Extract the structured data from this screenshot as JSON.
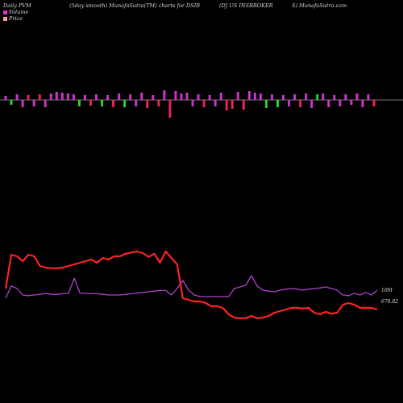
{
  "header": {
    "left": "Daily PVM",
    "center_left": "(5day smooth) MunafaSutra(TM) charts for DSIB",
    "center_right": "(DJ US INSBROKER",
    "right": "S) MunafaSutra.com"
  },
  "legend": {
    "volume_label": "Volume",
    "price_label": "Price",
    "volume_color": "#d633d6",
    "price_color": "#ff3333"
  },
  "colors": {
    "background": "#000000",
    "bar_up": "#cc33cc",
    "bar_down": "#ee2255",
    "bar_green": "#33cc33",
    "baseline": "#9a9a9a",
    "price_line": "#ff2222",
    "volume_line": "#b040d0"
  },
  "chart_data": [
    {
      "type": "bar",
      "series": [
        {
          "values": [
            5,
            -6,
            7,
            -9,
            6,
            -8,
            7,
            -9,
            8,
            10,
            9,
            8,
            7,
            -8,
            6,
            -7,
            7,
            -8,
            6,
            -9,
            8,
            -9,
            7,
            -8,
            9,
            -10,
            6,
            -8,
            12,
            -22,
            11,
            8,
            9,
            -8,
            7,
            -9,
            6,
            -8,
            9,
            -13,
            -11,
            10,
            -12,
            11,
            9,
            8,
            -10,
            7,
            -9,
            6,
            -8,
            7,
            -9,
            8,
            -10,
            7,
            8,
            -9,
            6,
            -8,
            7,
            -6,
            8,
            -9,
            7,
            -8
          ]
        }
      ],
      "bar_colors": [
        "up",
        "green",
        "up",
        "up",
        "down",
        "up",
        "down",
        "up",
        "up",
        "up",
        "up",
        "up",
        "up",
        "green",
        "up",
        "down",
        "up",
        "green",
        "up",
        "down",
        "up",
        "green",
        "up",
        "up",
        "up",
        "down",
        "up",
        "down",
        "up",
        "down",
        "up",
        "up",
        "up",
        "up",
        "up",
        "down",
        "up",
        "up",
        "up",
        "down",
        "down",
        "up",
        "down",
        "up",
        "up",
        "up",
        "green",
        "up",
        "green",
        "up",
        "up",
        "up",
        "down",
        "up",
        "up",
        "green",
        "up",
        "up",
        "up",
        "up",
        "up",
        "up",
        "up",
        "up",
        "up",
        "down"
      ]
    },
    {
      "type": "line",
      "y_labels": [
        "10M",
        "678.82"
      ],
      "series": [
        {
          "name": "Volume",
          "values": [
            0,
            0.38,
            0.3,
            0.1,
            0.08,
            0.1,
            0.12,
            0.15,
            0.12,
            0.12,
            0.14,
            0.15,
            0.62,
            0.16,
            0.15,
            0.14,
            0.14,
            0.12,
            0.1,
            0.1,
            0.1,
            0.12,
            0.14,
            0.16,
            0.18,
            0.2,
            0.22,
            0.24,
            0.24,
            0.1,
            0.3,
            0.55,
            0.25,
            0.1,
            0.05,
            0.05,
            0.05,
            0.05,
            0.05,
            0.05,
            0.3,
            0.35,
            0.4,
            0.7,
            0.38,
            0.25,
            0.22,
            0.2,
            0.25,
            0.28,
            0.3,
            0.28,
            0.25,
            0.28,
            0.3,
            0.32,
            0.35,
            0.3,
            0.25,
            0.1,
            0.08,
            0.15,
            0.1,
            0.18,
            0.1,
            0.25
          ]
        },
        {
          "name": "Price",
          "values": [
            0.3,
            1.35,
            1.3,
            1.15,
            1.35,
            1.3,
            1.0,
            0.95,
            0.93,
            0.93,
            0.95,
            1.0,
            1.05,
            1.1,
            1.15,
            1.2,
            1.1,
            1.25,
            1.2,
            1.3,
            1.3,
            1.38,
            1.42,
            1.45,
            1.4,
            1.28,
            1.38,
            1.1,
            1.45,
            1.25,
            1.05,
            0.0,
            -0.05,
            -0.1,
            -0.1,
            -0.15,
            -0.25,
            -0.25,
            -0.3,
            -0.5,
            -0.6,
            -0.62,
            -0.62,
            -0.55,
            -0.62,
            -0.6,
            -0.55,
            -0.45,
            -0.4,
            -0.35,
            -0.3,
            -0.3,
            -0.32,
            -0.3,
            -0.45,
            -0.5,
            -0.42,
            -0.48,
            -0.45,
            -0.2,
            -0.15,
            -0.2,
            -0.3,
            -0.3,
            -0.3,
            -0.35
          ]
        }
      ]
    }
  ]
}
